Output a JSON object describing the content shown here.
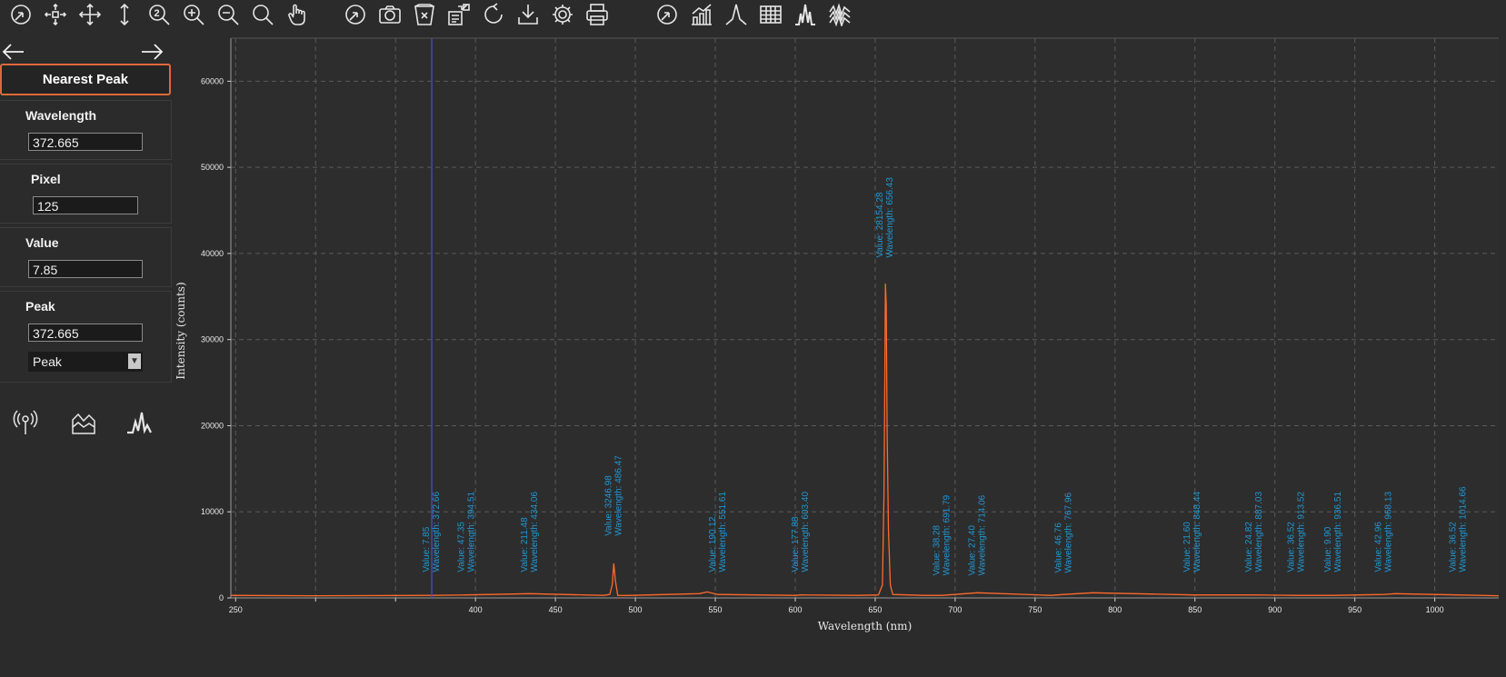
{
  "toolbar": {
    "tools": [
      {
        "name": "reset-view-icon",
        "x": 7
      },
      {
        "name": "zoom-center-icon",
        "x": 45
      },
      {
        "name": "pan-move-icon",
        "x": 83
      },
      {
        "name": "vertical-resize-icon",
        "x": 121
      },
      {
        "name": "zoom-number-icon",
        "x": 159
      },
      {
        "name": "zoom-in-icon",
        "x": 197
      },
      {
        "name": "zoom-out-icon",
        "x": 235
      },
      {
        "name": "zoom-reset-icon",
        "x": 273
      },
      {
        "name": "hand-pointer-icon",
        "x": 311
      },
      {
        "name": "autoscale-icon",
        "x": 375
      },
      {
        "name": "camera-icon",
        "x": 413
      },
      {
        "name": "clear-icon",
        "x": 451
      },
      {
        "name": "data-export-icon",
        "x": 489
      },
      {
        "name": "refresh-icon",
        "x": 527
      },
      {
        "name": "download-icon",
        "x": 565
      },
      {
        "name": "settings-gear-icon",
        "x": 603
      },
      {
        "name": "print-icon",
        "x": 641
      },
      {
        "name": "reset-axes-icon",
        "x": 718
      },
      {
        "name": "bar-chart-icon",
        "x": 756
      },
      {
        "name": "peak-find-icon",
        "x": 794
      },
      {
        "name": "table-icon",
        "x": 832
      },
      {
        "name": "spectrum-peaks-icon",
        "x": 870
      },
      {
        "name": "multi-spectra-icon",
        "x": 908
      }
    ]
  },
  "sidebar": {
    "nearest_peak_label": "Nearest Peak",
    "wavelength_label": "Wavelength",
    "wavelength_value": "372.665",
    "pixel_label": "Pixel",
    "pixel_value": "125",
    "value_label": "Value",
    "value_value": "7.85",
    "peak_label": "Peak",
    "peak_value": "372.665",
    "peak_mode": "Peak",
    "peak_mode_arrow": "▼"
  },
  "chart_data": {
    "type": "line",
    "title": "",
    "xlabel": "Wavelength (nm)",
    "ylabel": "Intensity (counts)",
    "xlim": [
      247,
      1040
    ],
    "ylim": [
      0,
      65000
    ],
    "x_ticks": [
      250,
      300,
      350,
      400,
      450,
      500,
      550,
      600,
      650,
      700,
      750,
      800,
      850,
      900,
      950,
      1000
    ],
    "x_tick_labels": [
      "250",
      "",
      "",
      "400",
      "450",
      "500",
      "550",
      "600",
      "650",
      "700",
      "750",
      "800",
      "850",
      "900",
      "950",
      "1000"
    ],
    "y_ticks": [
      0,
      10000,
      20000,
      30000,
      40000,
      50000,
      60000
    ],
    "grid": true,
    "cursor_wavelength": 372.665,
    "colors": {
      "line": "#ff6a2a",
      "cursor": "#4a4ab8",
      "annotation": "#1f97d4",
      "grid": "#5a5a5a"
    },
    "series": [
      {
        "x": [
          247,
          300,
          372.66,
          394.51,
          434.06,
          480,
          484,
          485.5,
          486.47,
          487.5,
          489,
          495,
          540,
          545,
          551.61,
          600,
          603.4,
          640,
          652,
          654.5,
          655.5,
          656.0,
          656.43,
          656.9,
          657.4,
          658.3,
          659.5,
          661,
          680,
          691.79,
          714.06,
          760,
          767.96,
          786,
          848.44,
          887.03,
          913.52,
          936.51,
          968.13,
          975,
          1014.66,
          1040
        ],
        "y": [
          300,
          250,
          300,
          350,
          500,
          300,
          400,
          1500,
          4000,
          2000,
          300,
          280,
          500,
          700,
          400,
          300,
          350,
          300,
          350,
          1500,
          12000,
          25000,
          36500,
          34000,
          20000,
          8000,
          1500,
          400,
          300,
          300,
          600,
          300,
          400,
          600,
          350,
          350,
          300,
          300,
          400,
          500,
          350,
          250
        ]
      }
    ],
    "annotations": [
      {
        "x": 372.66,
        "value": "Value: 7.85",
        "wavelength": "Wavelength: 372.66",
        "y": 3000
      },
      {
        "x": 394.51,
        "value": "Value: 47.35",
        "wavelength": "Wavelength: 394.51",
        "y": 3000
      },
      {
        "x": 434.06,
        "value": "Value: 211.48",
        "wavelength": "Wavelength: 434.06",
        "y": 3000
      },
      {
        "x": 486.47,
        "value": "Value: 3246.98",
        "wavelength": "Wavelength: 486.47",
        "y": 7200
      },
      {
        "x": 551.61,
        "value": "Value: 190.12",
        "wavelength": "Wavelength: 551.61",
        "y": 3000
      },
      {
        "x": 603.4,
        "value": "Value: 177.88",
        "wavelength": "Wavelength: 603.40",
        "y": 3000
      },
      {
        "x": 656.43,
        "value": "Value: 28154.28",
        "wavelength": "Wavelength: 656.43",
        "y": 39500
      },
      {
        "x": 691.79,
        "value": "Value: 38.28",
        "wavelength": "Wavelength: 691.79",
        "y": 2600
      },
      {
        "x": 714.06,
        "value": "Value: 27.40",
        "wavelength": "Wavelength: 714.06",
        "y": 2600
      },
      {
        "x": 767.96,
        "value": "Value: 46.76",
        "wavelength": "Wavelength: 767.96",
        "y": 2900
      },
      {
        "x": 848.44,
        "value": "Value: 21.60",
        "wavelength": "Wavelength: 848.44",
        "y": 3000
      },
      {
        "x": 887.03,
        "value": "Value: 24.82",
        "wavelength": "Wavelength: 887.03",
        "y": 3000
      },
      {
        "x": 913.52,
        "value": "Value: 36.52",
        "wavelength": "Wavelength: 913.52",
        "y": 3000
      },
      {
        "x": 936.51,
        "value": "Value: 9.90",
        "wavelength": "Wavelength: 936.51",
        "y": 3000
      },
      {
        "x": 968.13,
        "value": "Value: 42.96",
        "wavelength": "Wavelength: 968.13",
        "y": 3000
      },
      {
        "x": 1014.66,
        "value": "Value: 36.52",
        "wavelength": "Wavelength: 1014.66",
        "y": 3000
      }
    ]
  }
}
